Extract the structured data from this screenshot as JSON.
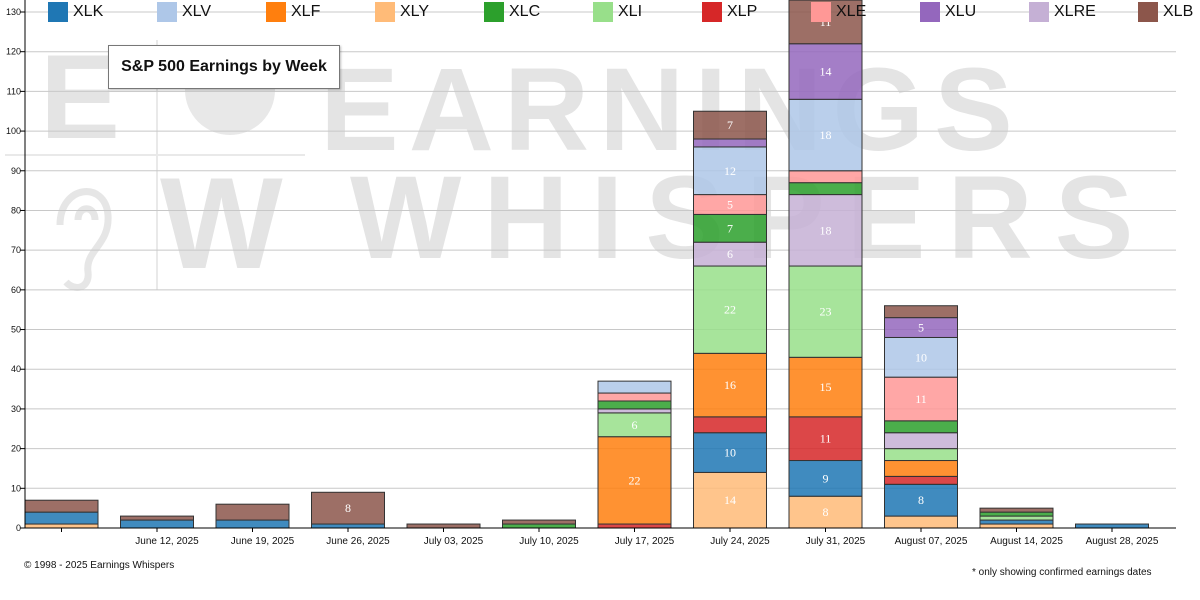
{
  "chart_data": {
    "type": "bar",
    "stacked": true,
    "title": "S&P 500 Earnings by Week",
    "xlabel": "",
    "ylabel": "",
    "ylim": [
      0,
      130
    ],
    "yticks": [
      0,
      10,
      20,
      30,
      40,
      50,
      60,
      70,
      80,
      90,
      100,
      110,
      120,
      130
    ],
    "categories": [
      "",
      "June 12, 2025",
      "June 19, 2025",
      "June 26, 2025",
      "July 03, 2025",
      "July 10, 2025",
      "July 17, 2025",
      "July 24, 2025",
      "July 31, 2025",
      "August 07, 2025",
      "August 14, 2025",
      "August 28, 2025"
    ],
    "series": [
      {
        "name": "XLY",
        "color": "#ffbb78",
        "values": [
          1,
          0,
          0,
          0,
          0,
          0,
          0,
          14,
          8,
          3,
          1,
          0
        ]
      },
      {
        "name": "XLK",
        "color": "#1f77b4",
        "values": [
          3,
          2,
          2,
          1,
          0,
          0,
          0,
          10,
          9,
          8,
          1,
          1
        ]
      },
      {
        "name": "XLP",
        "color": "#d62728",
        "values": [
          0,
          0,
          0,
          0,
          0,
          0,
          1,
          4,
          11,
          2,
          0,
          0
        ]
      },
      {
        "name": "XLF",
        "color": "#ff7f0e",
        "values": [
          0,
          0,
          0,
          0,
          0,
          0,
          22,
          16,
          15,
          4,
          0,
          0
        ]
      },
      {
        "name": "XLI",
        "color": "#98df8a",
        "values": [
          0,
          0,
          0,
          0,
          0,
          0,
          6,
          22,
          23,
          3,
          1,
          0
        ]
      },
      {
        "name": "XLRE",
        "color": "#c5b0d5",
        "values": [
          0,
          0,
          0,
          0,
          0,
          0,
          1,
          6,
          18,
          4,
          0,
          0
        ]
      },
      {
        "name": "XLC",
        "color": "#2ca02c",
        "values": [
          0,
          0,
          0,
          0,
          0,
          1,
          2,
          7,
          3,
          3,
          1,
          0
        ]
      },
      {
        "name": "XLE",
        "color": "#ff9896",
        "values": [
          0,
          0,
          0,
          0,
          0,
          0,
          2,
          5,
          3,
          11,
          0,
          0
        ]
      },
      {
        "name": "XLV",
        "color": "#aec7e8",
        "values": [
          0,
          0,
          0,
          0,
          0,
          0,
          3,
          12,
          18,
          10,
          0,
          0
        ]
      },
      {
        "name": "XLU",
        "color": "#9467bd",
        "values": [
          0,
          0,
          0,
          0,
          0,
          0,
          0,
          2,
          14,
          5,
          0,
          0
        ]
      },
      {
        "name": "XLB",
        "color": "#8c564b",
        "values": [
          3,
          1,
          4,
          8,
          1,
          1,
          0,
          7,
          11,
          3,
          1,
          0
        ]
      }
    ],
    "legend": [
      "XLK",
      "XLV",
      "XLF",
      "XLY",
      "XLC",
      "XLI",
      "XLP",
      "XLE",
      "XLU",
      "XLRE",
      "XLB"
    ],
    "legend_position": "top"
  },
  "watermark": {
    "brand_line1": "EARNINGS",
    "brand_line2": "WHISPERS"
  },
  "footer": {
    "copyright": "© 1998 - 2025 Earnings Whispers",
    "note": "* only showing confirmed earnings dates"
  }
}
